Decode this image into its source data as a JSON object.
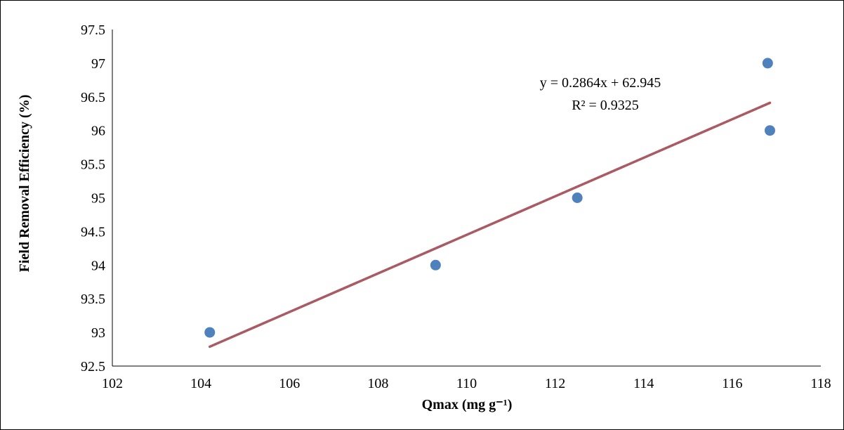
{
  "chart_data": {
    "type": "scatter",
    "xlabel": "Qmax (mg g⁻¹)",
    "ylabel": "Field Removal Efficiency (%)",
    "xlim": [
      102,
      118
    ],
    "ylim": [
      92.5,
      97.5
    ],
    "x_ticks": [
      "102",
      "104",
      "106",
      "108",
      "110",
      "112",
      "114",
      "116",
      "118"
    ],
    "y_ticks": [
      "92.5",
      "93",
      "93.5",
      "94",
      "94.5",
      "95",
      "95.5",
      "96",
      "96.5",
      "97",
      "97.5"
    ],
    "grid": false,
    "series": [
      {
        "points": [
          {
            "x": 104.2,
            "y": 93
          },
          {
            "x": 109.3,
            "y": 94
          },
          {
            "x": 112.5,
            "y": 95
          },
          {
            "x": 116.8,
            "y": 97
          },
          {
            "x": 116.85,
            "y": 96
          }
        ],
        "color": "#4F81BD"
      }
    ],
    "trendline": {
      "slope": 0.2864,
      "intercept": 62.945,
      "x_range": [
        104.2,
        116.85
      ],
      "color": "#C0504D",
      "dash_color": "#4F81BD",
      "equation_label": "y = 0.2864x + 62.945",
      "r2_label": "R² = 0.9325"
    }
  }
}
